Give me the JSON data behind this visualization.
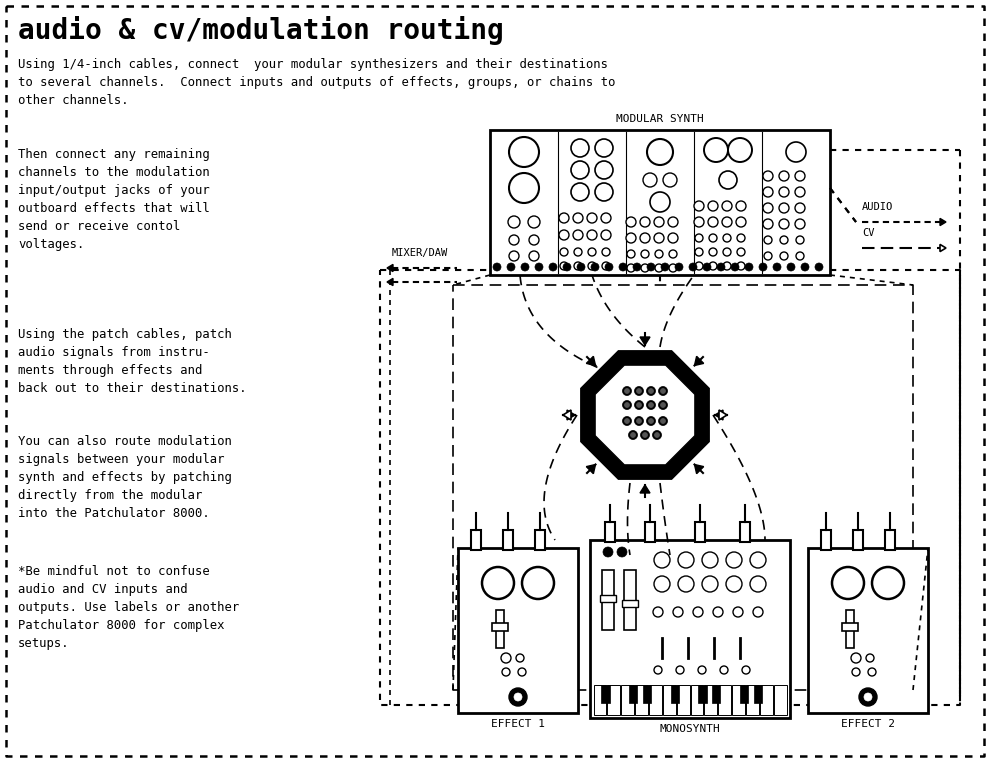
{
  "title": "audio & cv/modulation routing",
  "bg_color": "#ffffff",
  "text_color": "#000000",
  "para1": "Using 1/4-inch cables, connect  your modular synthesizers and their destinations\nto several channels.  Connect inputs and outputs of effects, groups, or chains to\nother channels.",
  "para2": "Then connect any remaining\nchannels to the modulation\ninput/output jacks of your\noutboard effects that will\nsend or receive contol\nvoltages.",
  "para3": "Using the patch cables, patch\naudio signals from instru-\nments through effects and\nback out to their destinations.",
  "para4": "You can also route modulation\nsignals between your modular\nsynth and effects by patching\ndirectly from the modular\ninto the Patchulator 8000.",
  "para5": "*Be mindful not to confuse\naudio and CV inputs and\noutputs. Use labels or another\nPatchulator 8000 for complex\nsetups.",
  "label_modular": "MODULAR SYNTH",
  "label_mixer": "MIXER/DAW",
  "label_audio": "AUDIO",
  "label_cv": "CV",
  "label_effect1": "EFFECT 1",
  "label_monosynth": "MONOSYNTH",
  "label_effect2": "EFFECT 2",
  "fig_w": 9.9,
  "fig_h": 7.62,
  "dpi": 100
}
